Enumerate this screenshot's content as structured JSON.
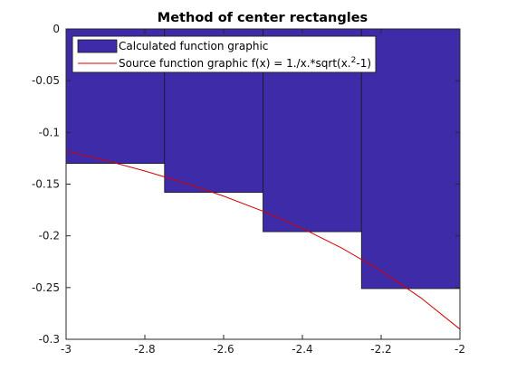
{
  "chart_data": {
    "type": "bar",
    "title": "Method of center rectangles",
    "xlabel": "",
    "ylabel": "",
    "xlim": [
      -3,
      -2
    ],
    "ylim": [
      -0.3,
      0
    ],
    "x_ticks": [
      -3,
      -2.8,
      -2.6,
      -2.4,
      -2.2,
      -2
    ],
    "x_tick_labels": [
      "-3",
      "-2.8",
      "-2.6",
      "-2.4",
      "-2.2",
      "-2"
    ],
    "y_ticks": [
      0,
      -0.05,
      -0.1,
      -0.15,
      -0.2,
      -0.25,
      -0.3
    ],
    "y_tick_labels": [
      "0",
      "-0.05",
      "-0.1",
      "-0.15",
      "-0.2",
      "-0.25",
      "-0.3"
    ],
    "grid": false,
    "legend_position": "top-left",
    "series": [
      {
        "name": "Calculated function graphic",
        "type": "bar",
        "color": "#3D2BA8",
        "bin_edges": [
          -3,
          -2.75,
          -2.5,
          -2.25,
          -2
        ],
        "values": [
          -0.13,
          -0.158,
          -0.196,
          -0.251
        ]
      },
      {
        "name": "Source function graphic f(x) = 1./x.*sqrt(x.^2-1)",
        "legend_label_parts": [
          "Source function graphic f(x) = 1./x.*sqrt(x.",
          "2",
          "-1)"
        ],
        "type": "line",
        "color": "#D40000",
        "x": [
          -3,
          -2.9,
          -2.8,
          -2.7,
          -2.6,
          -2.5,
          -2.4,
          -2.3,
          -2.2,
          -2.1,
          -2
        ],
        "y": [
          -0.1179,
          -0.1271,
          -0.1373,
          -0.1487,
          -0.1616,
          -0.1762,
          -0.1928,
          -0.2118,
          -0.2339,
          -0.2597,
          -0.2902
        ]
      }
    ]
  }
}
